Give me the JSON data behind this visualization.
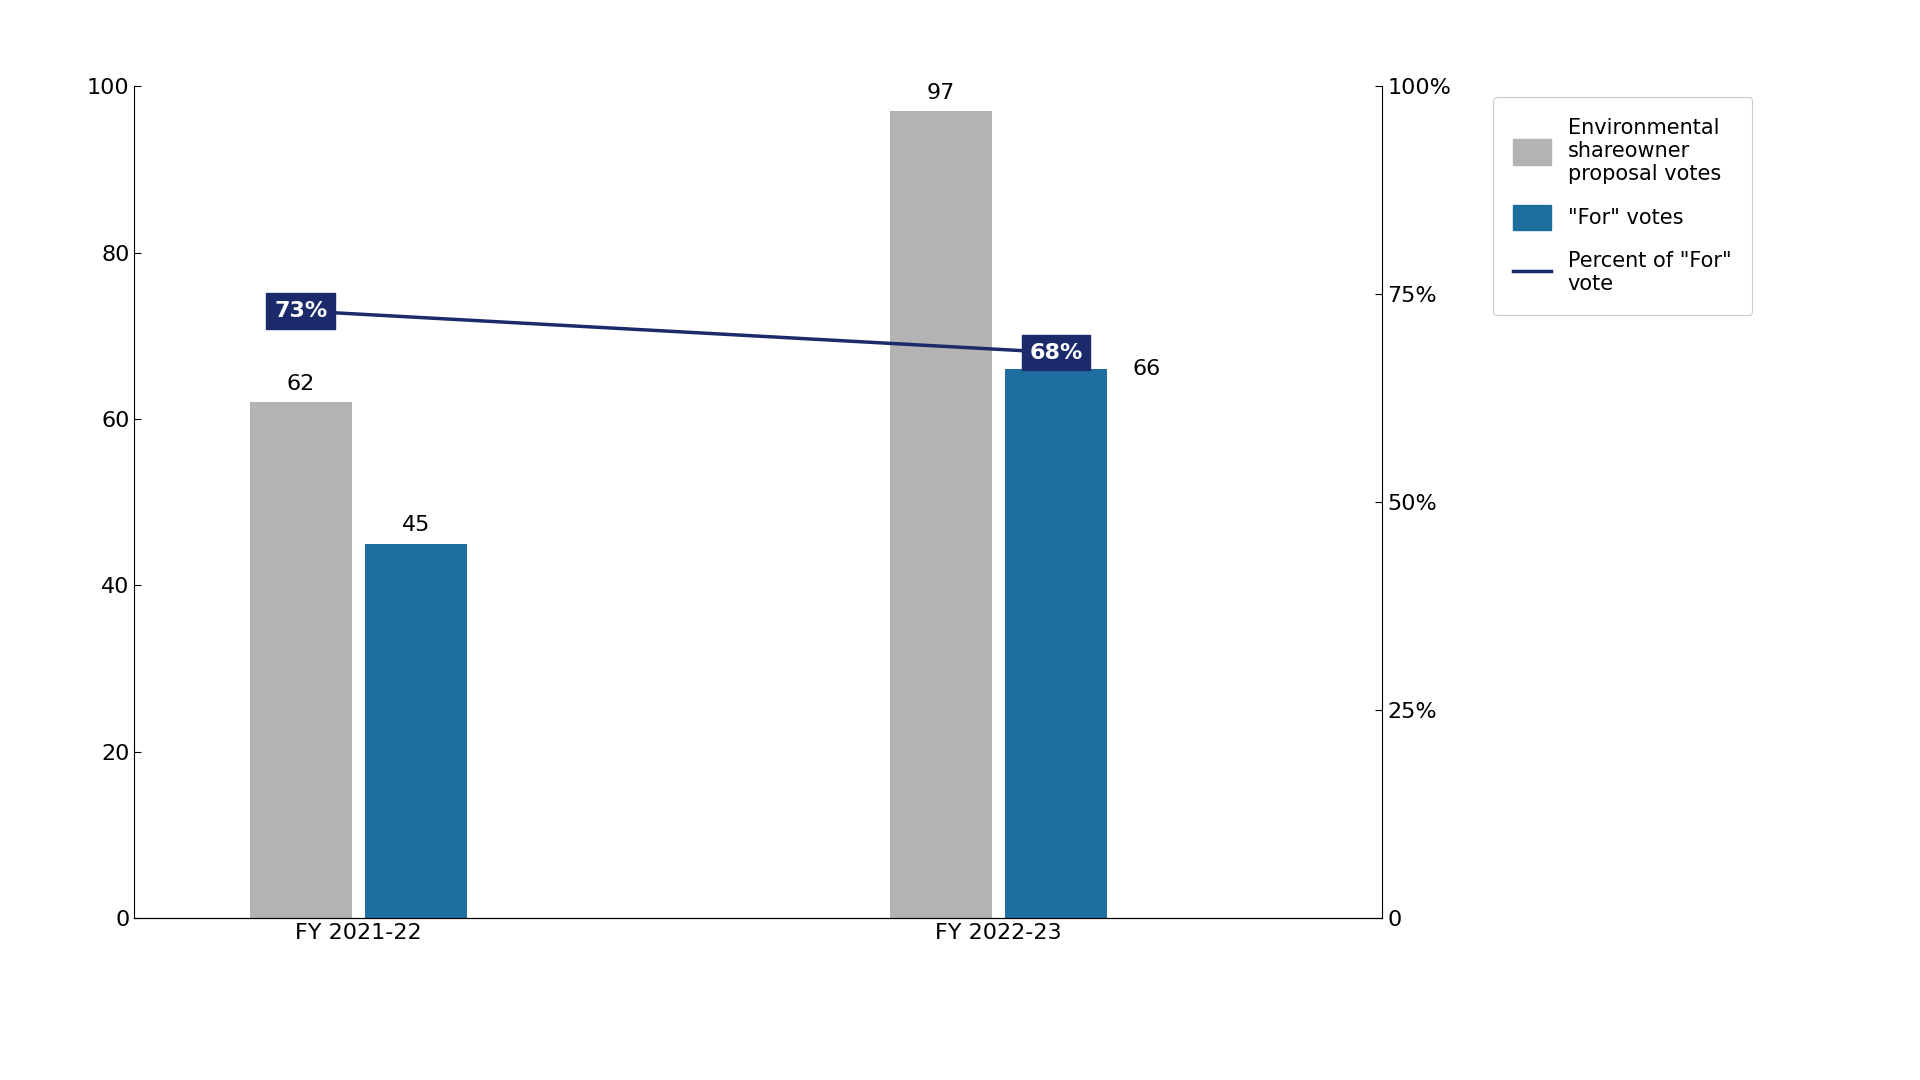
{
  "categories": [
    "FY 2021-22",
    "FY 2022-23"
  ],
  "total_votes": [
    62,
    97
  ],
  "for_votes": [
    45,
    66
  ],
  "support_pct": [
    0.73,
    0.68
  ],
  "support_pct_labels": [
    "73%",
    "68%"
  ],
  "bar_color_gray": "#b3b3b3",
  "bar_color_blue": "#1e6f9f",
  "line_color": "#1b2a6b",
  "annotation_bg_color": "#1b2a6b",
  "annotation_text_color": "#ffffff",
  "background_color": "#ffffff",
  "ylim_left": [
    0,
    100
  ],
  "ylim_right": [
    0,
    1.0
  ],
  "yticks_left": [
    0,
    20,
    40,
    60,
    80,
    100
  ],
  "yticks_right": [
    0,
    0.25,
    0.5,
    0.75,
    1.0
  ],
  "ytick_right_labels": [
    "0",
    "25%",
    "50%",
    "75%",
    "100%"
  ],
  "bar_width": 0.32,
  "legend_labels": [
    "Environmental\nshareowner\nproposal votes",
    "\"For\" votes",
    "Percent of \"For\"\nvote"
  ],
  "font_size_ticks": 16,
  "font_size_bar_labels": 16,
  "font_size_legend": 15
}
